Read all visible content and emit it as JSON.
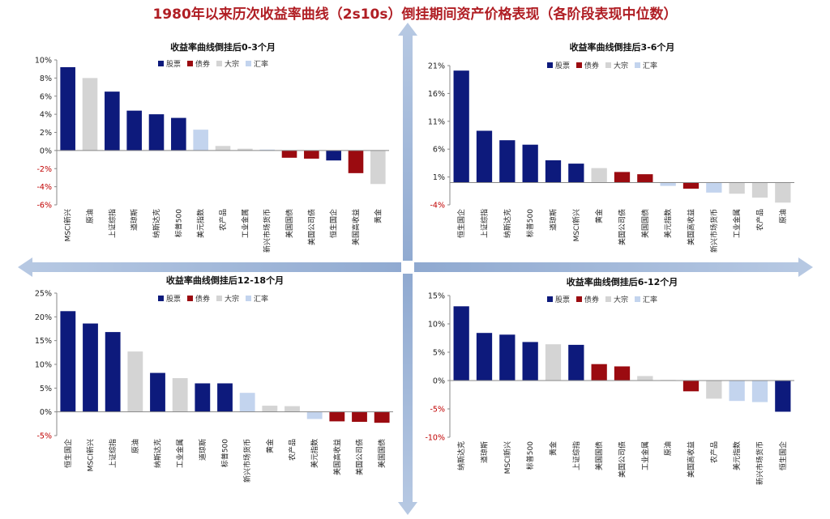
{
  "title": "1980年以来历次收益率曲线（2s10s）倒挂期间资产价格表现（各阶段表现中位数）",
  "legend": [
    {
      "key": "stock",
      "label": "股票",
      "color": "#0d1a7c"
    },
    {
      "key": "bond",
      "label": "债券",
      "color": "#9b0b10"
    },
    {
      "key": "commodity",
      "label": "大宗",
      "color": "#d4d4d4"
    },
    {
      "key": "fx",
      "label": "汇率",
      "color": "#c3d4ee"
    }
  ],
  "chart_data": [
    {
      "type": "bar",
      "title": "收益率曲线倒挂后0-3个月",
      "ylim": [
        -6,
        10
      ],
      "yticks": [
        -6,
        -4,
        -2,
        0,
        2,
        4,
        6,
        8,
        10
      ],
      "tick_labels": [
        "-6%",
        "-4%",
        "-2%",
        "0%",
        "2%",
        "4%",
        "6%",
        "8%",
        "10%"
      ],
      "categories": [
        "MSCI新兴",
        "原油",
        "上证综指",
        "道琼斯",
        "纳斯达克",
        "标普500",
        "美元指数",
        "农产品",
        "工业金属",
        "新兴市场货币",
        "美国国债",
        "美国公司债",
        "恒生国企",
        "美国高收益",
        "黄金"
      ],
      "groups": [
        "stock",
        "commodity",
        "stock",
        "stock",
        "stock",
        "stock",
        "fx",
        "commodity",
        "commodity",
        "fx",
        "bond",
        "bond",
        "stock",
        "bond",
        "commodity"
      ],
      "values": [
        9.2,
        8.0,
        6.5,
        4.4,
        4.0,
        3.6,
        2.3,
        0.5,
        0.2,
        0.1,
        -0.8,
        -0.9,
        -1.1,
        -2.5,
        -3.7
      ]
    },
    {
      "type": "bar",
      "title": "收益率曲线倒挂后3-6个月",
      "ylim": [
        -4,
        21
      ],
      "yticks": [
        -4,
        1,
        6,
        11,
        16,
        21
      ],
      "tick_labels": [
        "-4%",
        "1%",
        "6%",
        "11%",
        "16%",
        "21%"
      ],
      "categories": [
        "恒生国企",
        "上证综指",
        "纳斯达克",
        "标普500",
        "道琼斯",
        "MSCI新兴",
        "黄金",
        "美国公司债",
        "美国国债",
        "美元指数",
        "美国高收益",
        "新兴市场货币",
        "工业金属",
        "农产品",
        "原油"
      ],
      "groups": [
        "stock",
        "stock",
        "stock",
        "stock",
        "stock",
        "stock",
        "commodity",
        "bond",
        "bond",
        "fx",
        "bond",
        "fx",
        "commodity",
        "commodity",
        "commodity"
      ],
      "values": [
        20.1,
        9.3,
        7.6,
        6.8,
        4.0,
        3.4,
        2.6,
        1.9,
        1.5,
        -0.6,
        -1.1,
        -1.8,
        -2.0,
        -2.7,
        -3.6
      ]
    },
    {
      "type": "bar",
      "title": "收益率曲线倒挂后12-18个月",
      "ylim": [
        -5,
        25
      ],
      "yticks": [
        -5,
        0,
        5,
        10,
        15,
        20,
        25
      ],
      "tick_labels": [
        "-5%",
        "0%",
        "5%",
        "10%",
        "15%",
        "20%",
        "25%"
      ],
      "categories": [
        "恒生国企",
        "MSCI新兴",
        "上证综指",
        "原油",
        "纳斯达克",
        "工业金属",
        "道琼斯",
        "标普500",
        "新兴市场货币",
        "黄金",
        "农产品",
        "美元指数",
        "美国高收益",
        "美国公司债",
        "美国国债"
      ],
      "groups": [
        "stock",
        "stock",
        "stock",
        "commodity",
        "stock",
        "commodity",
        "stock",
        "stock",
        "fx",
        "commodity",
        "commodity",
        "fx",
        "bond",
        "bond",
        "bond"
      ],
      "values": [
        21.2,
        18.6,
        16.8,
        12.7,
        8.2,
        7.1,
        6.0,
        6.0,
        4.0,
        1.3,
        1.2,
        -1.5,
        -2.0,
        -2.1,
        -2.3
      ]
    },
    {
      "type": "bar",
      "title": "收益率曲线倒挂后6-12个月",
      "ylim": [
        -10,
        15
      ],
      "yticks": [
        -10,
        -5,
        0,
        5,
        10,
        15
      ],
      "tick_labels": [
        "-10%",
        "-5%",
        "0%",
        "5%",
        "10%",
        "15%"
      ],
      "categories": [
        "纳斯达克",
        "道琼斯",
        "MSCI新兴",
        "标普500",
        "黄金",
        "上证综指",
        "美国国债",
        "美国公司债",
        "工业金属",
        "原油",
        "美国高收益",
        "农产品",
        "美元指数",
        "新兴市场货币",
        "恒生国企"
      ],
      "groups": [
        "stock",
        "stock",
        "stock",
        "stock",
        "commodity",
        "stock",
        "bond",
        "bond",
        "commodity",
        "commodity",
        "bond",
        "commodity",
        "fx",
        "fx",
        "stock"
      ],
      "values": [
        13.1,
        8.4,
        8.1,
        6.8,
        6.4,
        6.3,
        2.9,
        2.5,
        0.8,
        0.1,
        -1.9,
        -3.2,
        -3.6,
        -3.8,
        -5.5
      ]
    }
  ]
}
